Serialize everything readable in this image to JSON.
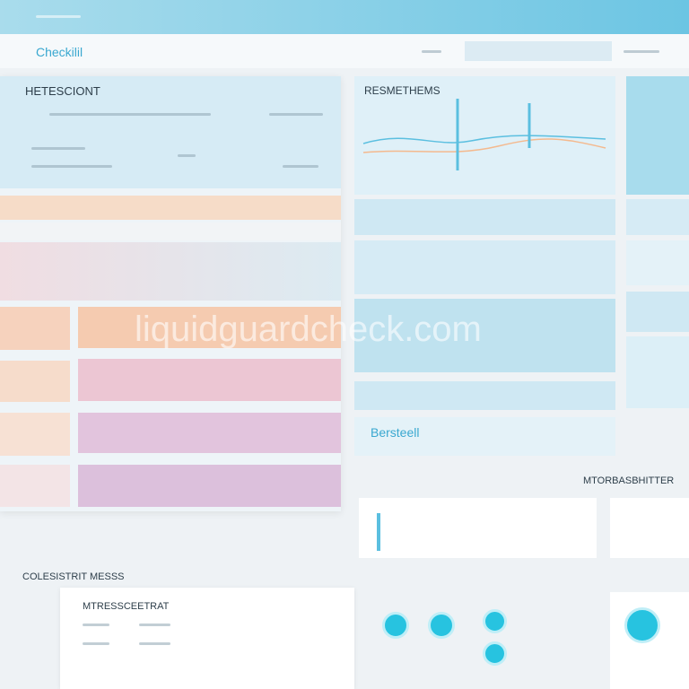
{
  "header": {
    "brand": "Checkilil"
  },
  "panels": {
    "left_title": "HETESCIONT",
    "chart_title": "RESMETHEMS",
    "blue_label": "Bersteell",
    "right_title": "MTORBASBHITTER",
    "bottom_title": "COLESISTRIT MESSS",
    "card_title": "MTRESSCEETRAT"
  },
  "watermark": "liquidguardcheck.com"
}
